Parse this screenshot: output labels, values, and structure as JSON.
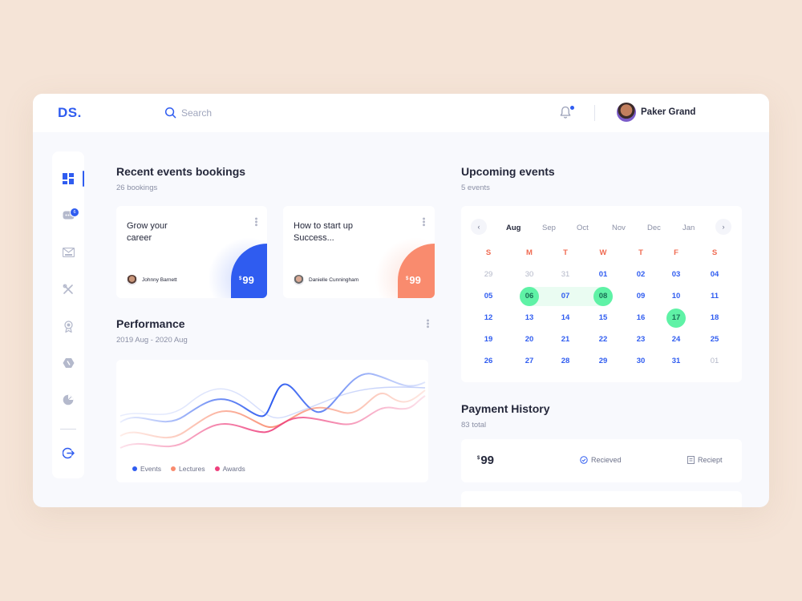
{
  "app": {
    "logo": "DS."
  },
  "topbar": {
    "search_placeholder": "Search",
    "user_name": "Paker Grand"
  },
  "sidebar": {
    "notification_count": "6",
    "items": [
      {
        "icon": "dashboard-icon"
      },
      {
        "icon": "chat-icon"
      },
      {
        "icon": "mail-icon"
      },
      {
        "icon": "tools-icon"
      },
      {
        "icon": "award-icon"
      },
      {
        "icon": "hexagon-icon"
      },
      {
        "icon": "pie-chart-icon"
      },
      {
        "icon": "logout-icon"
      }
    ]
  },
  "bookings": {
    "title": "Recent events bookings",
    "subtitle": "26 bookings",
    "cards": [
      {
        "title": "Grow your career",
        "person": "Johnny Barnett",
        "currency": "$",
        "price": "99",
        "color": "#2f5cf0"
      },
      {
        "title": "How to start up Success...",
        "person": "Danielle Cunningham",
        "currency": "$",
        "price": "99",
        "color": "#f98b6e"
      }
    ]
  },
  "performance": {
    "title": "Performance",
    "subtitle": "2019 Aug - 2020 Aug",
    "legend": [
      {
        "label": "Events",
        "color": "#2f5cf0"
      },
      {
        "label": "Lectures",
        "color": "#f98b6e"
      },
      {
        "label": "Awards",
        "color": "#ee3f7c"
      }
    ]
  },
  "upcoming": {
    "title": "Upcoming events",
    "subtitle": "5 events",
    "months": [
      "Aug",
      "Sep",
      "Oct",
      "Nov",
      "Dec",
      "Jan"
    ],
    "active_month": "Aug",
    "weekdays": [
      "S",
      "M",
      "T",
      "W",
      "T",
      "F",
      "S"
    ],
    "weeks": [
      [
        "29",
        "30",
        "31",
        "01",
        "02",
        "03",
        "04"
      ],
      [
        "05",
        "06",
        "07",
        "08",
        "09",
        "10",
        "11"
      ],
      [
        "12",
        "13",
        "14",
        "15",
        "16",
        "17",
        "18"
      ],
      [
        "19",
        "20",
        "21",
        "22",
        "23",
        "24",
        "25"
      ],
      [
        "26",
        "27",
        "28",
        "29",
        "30",
        "31",
        "01"
      ]
    ],
    "muted_days": [
      [
        0,
        0
      ],
      [
        0,
        1
      ],
      [
        0,
        2
      ],
      [
        4,
        6
      ]
    ],
    "highlighted_days": [
      [
        1,
        1
      ],
      [
        1,
        3
      ],
      [
        2,
        5
      ]
    ],
    "range": "06-08"
  },
  "payment": {
    "title": "Payment History",
    "subtitle": "83 total",
    "rows": [
      {
        "currency": "$",
        "amount": "99",
        "status": "Recieved",
        "action": "Reciept"
      }
    ]
  }
}
